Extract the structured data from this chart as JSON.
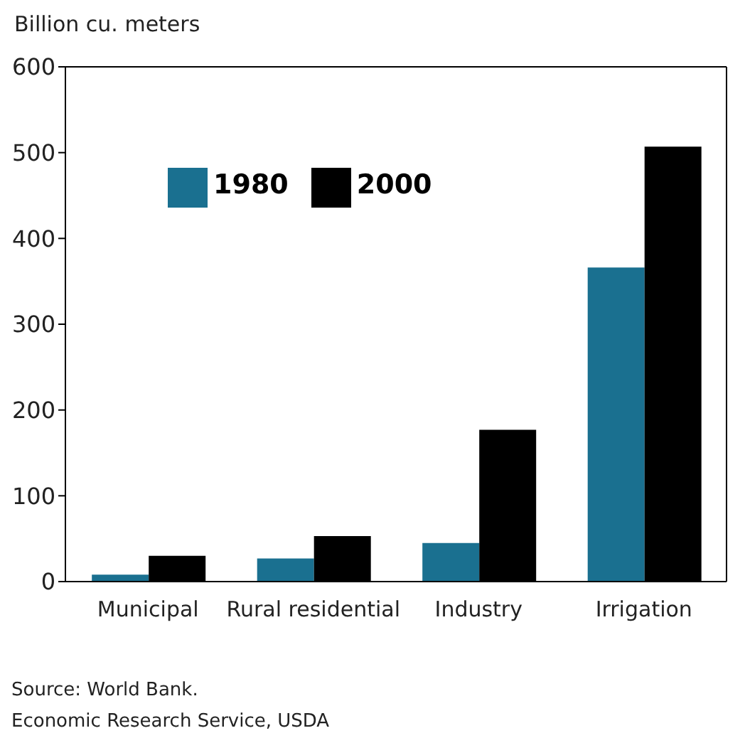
{
  "chart_data": {
    "type": "bar",
    "ylabel": "Billion cu. meters",
    "categories": [
      "Municipal",
      "Rural residential",
      "Industry",
      "Irrigation"
    ],
    "series": [
      {
        "name": "1980",
        "color": "#1a7090",
        "values": [
          8,
          27,
          45,
          366
        ]
      },
      {
        "name": "2000",
        "color": "#000000",
        "values": [
          30,
          53,
          177,
          507
        ]
      }
    ],
    "ylim": [
      0,
      600
    ],
    "yticks": [
      0,
      100,
      200,
      300,
      400,
      500,
      600
    ],
    "grid": false,
    "legend": "top left",
    "annotations": [
      "Source: World Bank.",
      "Economic Research Service, USDA"
    ]
  }
}
